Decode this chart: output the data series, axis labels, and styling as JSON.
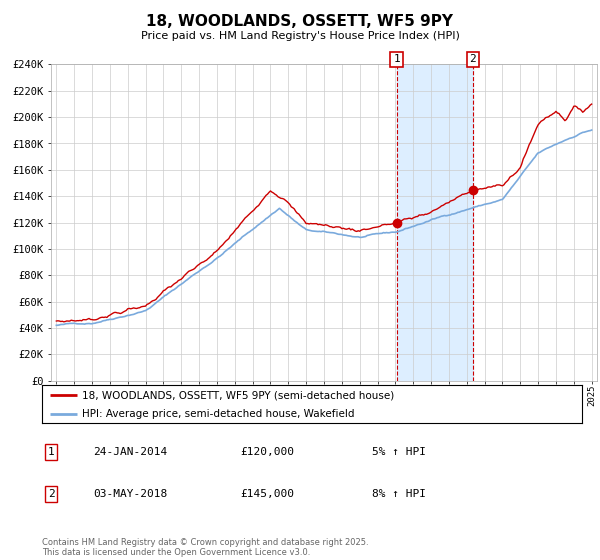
{
  "title": "18, WOODLANDS, OSSETT, WF5 9PY",
  "subtitle": "Price paid vs. HM Land Registry's House Price Index (HPI)",
  "legend_line1": "18, WOODLANDS, OSSETT, WF5 9PY (semi-detached house)",
  "legend_line2": "HPI: Average price, semi-detached house, Wakefield",
  "footnote": "Contains HM Land Registry data © Crown copyright and database right 2025.\nThis data is licensed under the Open Government Licence v3.0.",
  "table": [
    {
      "num": "1",
      "date": "24-JAN-2014",
      "price": "£120,000",
      "hpi": "5% ↑ HPI"
    },
    {
      "num": "2",
      "date": "03-MAY-2018",
      "price": "£145,000",
      "hpi": "8% ↑ HPI"
    }
  ],
  "x_start_year": 1995,
  "x_end_year": 2025,
  "y_min": 0,
  "y_max": 240000,
  "y_ticks": [
    0,
    20000,
    40000,
    60000,
    80000,
    100000,
    120000,
    140000,
    160000,
    180000,
    200000,
    220000,
    240000
  ],
  "y_labels": [
    "£0",
    "£20K",
    "£40K",
    "£60K",
    "£80K",
    "£100K",
    "£120K",
    "£140K",
    "£160K",
    "£180K",
    "£200K",
    "£220K",
    "£240K"
  ],
  "sale1_year": 2014.07,
  "sale1_price": 120000,
  "sale2_year": 2018.34,
  "sale2_price": 145000,
  "hpi_color": "#7aaadd",
  "price_color": "#cc0000",
  "shade_color": "#ddeeff",
  "marker_color": "#cc0000",
  "bg_color": "#ffffff",
  "grid_color": "#cccccc"
}
